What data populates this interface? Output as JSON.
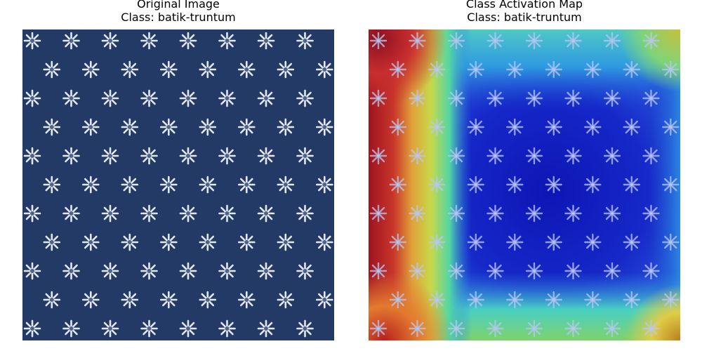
{
  "panels": [
    {
      "title": "Original Image",
      "subtitle": "Class: batik-truntum"
    },
    {
      "title": "Class Activation Map",
      "subtitle": "Class: batik-truntum"
    }
  ],
  "colors": {
    "fabric_base": "#243a66",
    "motif": "#dfe6ee",
    "heat_high": "#b3141b",
    "heat_mid": "#d8d23a",
    "heat_low": "#1420c8"
  }
}
